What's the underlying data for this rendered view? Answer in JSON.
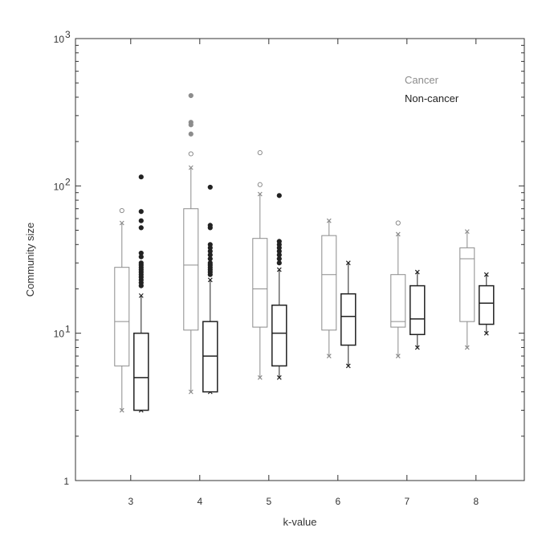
{
  "chart_data": {
    "type": "boxplot",
    "xlabel": "k-value",
    "ylabel": "Community size",
    "yscale": "log",
    "ylim": [
      1,
      1000
    ],
    "categories": [
      "3",
      "4",
      "5",
      "6",
      "7",
      "8"
    ],
    "y_tick_labels": [
      {
        "value": 1,
        "label": "1",
        "sup": ""
      },
      {
        "value": 10,
        "label": "10",
        "sup": "1"
      },
      {
        "value": 100,
        "label": "10",
        "sup": "2"
      },
      {
        "value": 1000,
        "label": "10",
        "sup": "3"
      }
    ],
    "legend_position": "top-right",
    "grid": false,
    "series": [
      {
        "name": "Cancer",
        "color": "#8c8c8c",
        "boxes": [
          {
            "q1": 6,
            "median": 12,
            "q3": 28,
            "whisker_low": 3,
            "whisker_high": 56,
            "outliers": [
              68
            ]
          },
          {
            "q1": 10.5,
            "median": 29,
            "q3": 70,
            "whisker_low": 4,
            "whisker_high": 133,
            "outliers": [
              165,
              225,
              260,
              270,
              410
            ]
          },
          {
            "q1": 11,
            "median": 20,
            "q3": 44,
            "whisker_low": 5,
            "whisker_high": 88,
            "outliers": [
              102,
              168
            ]
          },
          {
            "q1": 10.5,
            "median": 25,
            "q3": 46,
            "whisker_low": 7,
            "whisker_high": 58,
            "outliers": []
          },
          {
            "q1": 11,
            "median": 12,
            "q3": 25,
            "whisker_low": 7,
            "whisker_high": 47,
            "outliers": [
              56
            ]
          },
          {
            "q1": 12,
            "median": 32,
            "q3": 38,
            "whisker_low": 8,
            "whisker_high": 49,
            "outliers": []
          }
        ]
      },
      {
        "name": "Non-cancer",
        "color": "#222222",
        "boxes": [
          {
            "q1": 3,
            "median": 5,
            "q3": 10,
            "whisker_low": 3,
            "whisker_high": 18,
            "outliers": [
              21,
              22,
              23,
              24,
              25,
              26,
              27,
              28,
              29,
              30,
              33,
              35,
              52,
              58,
              67,
              115
            ]
          },
          {
            "q1": 4,
            "median": 7,
            "q3": 12,
            "whisker_low": 4,
            "whisker_high": 23,
            "outliers": [
              25,
              26,
              27,
              28,
              29,
              30,
              32,
              34,
              36,
              38,
              40,
              52,
              54,
              98
            ]
          },
          {
            "q1": 6,
            "median": 10,
            "q3": 15.5,
            "whisker_low": 5,
            "whisker_high": 27,
            "outliers": [
              30,
              32,
              34,
              36,
              38,
              40,
              42,
              86
            ]
          },
          {
            "q1": 8.3,
            "median": 13,
            "q3": 18.5,
            "whisker_low": 6,
            "whisker_high": 30,
            "outliers": []
          },
          {
            "q1": 9.8,
            "median": 12.5,
            "q3": 21,
            "whisker_low": 8,
            "whisker_high": 26,
            "outliers": []
          },
          {
            "q1": 11.5,
            "median": 16,
            "q3": 21,
            "whisker_low": 10,
            "whisker_high": 25,
            "outliers": []
          }
        ]
      }
    ]
  }
}
